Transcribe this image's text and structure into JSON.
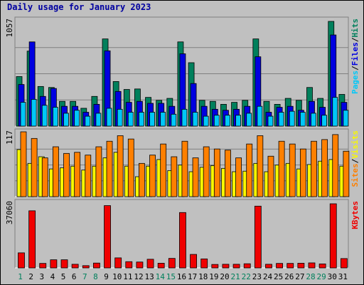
{
  "chart_data": {
    "title": "Daily usage for January 2023",
    "type": "bar",
    "categories": [
      "1",
      "2",
      "3",
      "4",
      "5",
      "6",
      "7",
      "8",
      "9",
      "10",
      "11",
      "12",
      "13",
      "14",
      "15",
      "16",
      "17",
      "18",
      "19",
      "20",
      "21",
      "22",
      "23",
      "24",
      "25",
      "26",
      "27",
      "28",
      "29",
      "30",
      "31"
    ],
    "weekend_days": [
      "1",
      "7",
      "8",
      "14",
      "15",
      "21",
      "22",
      "28",
      "29"
    ],
    "colors": {
      "hits": "#00805c",
      "files": "#0000e0",
      "pages": "#00c8f8",
      "visits": "#f8f800",
      "sites": "#ff8000",
      "kbytes": "#f00000",
      "weekday_label": "#000000",
      "weekend_label": "#00805c",
      "title": "#0000a0"
    },
    "panels": [
      {
        "id": "requests",
        "ymax_label": "1057",
        "ylim": [
          0,
          1057
        ],
        "legend": [
          {
            "text": "Pages",
            "color": "#00c8f8"
          },
          {
            "text": "/",
            "color": "#000000"
          },
          {
            "text": "Files",
            "color": "#0000e0"
          },
          {
            "text": "/",
            "color": "#000000"
          },
          {
            "text": "Hits",
            "color": "#00805c"
          }
        ],
        "series": [
          {
            "name": "Hits",
            "values": [
              500,
              757,
              400,
              390,
              250,
              250,
              180,
              300,
              880,
              450,
              370,
              375,
              290,
              260,
              280,
              850,
              640,
              260,
              250,
              220,
              240,
              260,
              880,
              250,
              220,
              280,
              260,
              390,
              280,
              1057,
              320
            ]
          },
          {
            "name": "Files",
            "values": [
              420,
              850,
              300,
              380,
              200,
              200,
              140,
              220,
              760,
              350,
              240,
              250,
              230,
              230,
              200,
              730,
              430,
              200,
              170,
              160,
              170,
              200,
              700,
              140,
              190,
              200,
              160,
              250,
              190,
              920,
              240
            ]
          },
          {
            "name": "Pages",
            "values": [
              240,
              270,
              210,
              190,
              130,
              160,
              100,
              130,
              180,
              170,
              140,
              140,
              140,
              140,
              120,
              170,
              140,
              100,
              110,
              110,
              110,
              130,
              200,
              100,
              140,
              150,
              140,
              130,
              110,
              290,
              160
            ]
          }
        ]
      },
      {
        "id": "visitors",
        "ymax_label": "117",
        "ylim": [
          0,
          117
        ],
        "legend": [
          {
            "text": "Sites",
            "color": "#ff8000"
          },
          {
            "text": "/",
            "color": "#000000"
          },
          {
            "text": "Visits",
            "color": "#f8f800"
          }
        ],
        "series": [
          {
            "name": "Sites",
            "values": [
              117,
              105,
              70,
              90,
              78,
              80,
              75,
              90,
              100,
              110,
              104,
              60,
              75,
              95,
              72,
              100,
              70,
              90,
              86,
              84,
              70,
              95,
              110,
              73,
              100,
              95,
              86,
              100,
              103,
              112,
              82
            ]
          },
          {
            "name": "Visits",
            "values": [
              85,
              60,
              72,
              50,
              52,
              55,
              48,
              55,
              70,
              80,
              55,
              36,
              55,
              67,
              47,
              57,
              45,
              53,
              56,
              51,
              45,
              46,
              60,
              45,
              57,
              60,
              50,
              58,
              64,
              67,
              55
            ]
          }
        ]
      },
      {
        "id": "traffic",
        "ymax_label": "37060",
        "ylim": [
          0,
          37060
        ],
        "legend": [
          {
            "text": "KBytes",
            "color": "#f00000"
          }
        ],
        "series": [
          {
            "name": "KBytes",
            "values": [
              8700,
              33000,
              2600,
              4700,
              4700,
              2100,
              1300,
              2800,
              36000,
              5800,
              3600,
              3400,
              5000,
              2700,
              5500,
              32000,
              7800,
              5200,
              2000,
              2100,
              2100,
              2400,
              35700,
              2100,
              2600,
              2600,
              2700,
              2900,
              2300,
              37060,
              5400
            ]
          }
        ]
      }
    ]
  }
}
